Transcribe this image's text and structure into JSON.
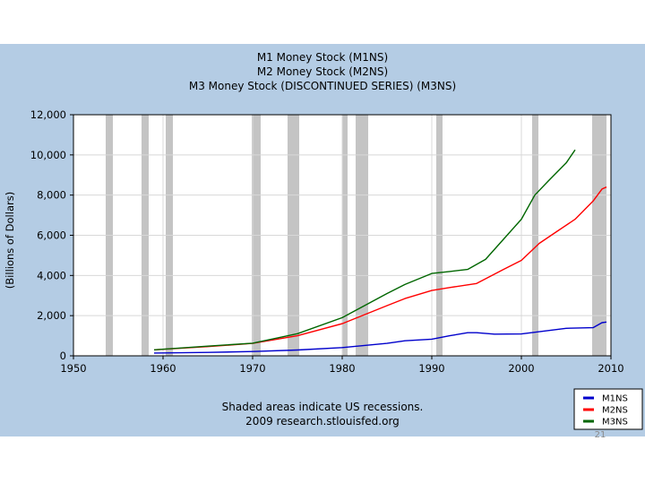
{
  "slide_number": "21",
  "chart_data": {
    "type": "line",
    "title_lines": [
      "M1 Money Stock (M1NS)",
      "M2 Money Stock (M2NS)",
      "M3 Money Stock (DISCONTINUED SERIES) (M3NS)"
    ],
    "ylabel": "(Billions of Dollars)",
    "xlabel": "",
    "xlim": [
      1950,
      2010
    ],
    "ylim": [
      0,
      12000
    ],
    "x_ticks": [
      1950,
      1960,
      1970,
      1980,
      1990,
      2000,
      2010
    ],
    "y_ticks": [
      0,
      2000,
      4000,
      6000,
      8000,
      10000,
      12000
    ],
    "x_tick_labels": [
      "1950",
      "1960",
      "1970",
      "1980",
      "1990",
      "2000",
      "2010"
    ],
    "y_tick_labels": [
      "0",
      "2,000",
      "4,000",
      "6,000",
      "8,000",
      "10,000",
      "12,000"
    ],
    "grid": true,
    "legend_position": "bottom-right",
    "recessions": [
      [
        1953.6,
        1954.4
      ],
      [
        1957.6,
        1958.4
      ],
      [
        1960.3,
        1961.1
      ],
      [
        1969.9,
        1970.9
      ],
      [
        1973.9,
        1975.2
      ],
      [
        1980.0,
        1980.6
      ],
      [
        1981.5,
        1982.9
      ],
      [
        1990.5,
        1991.2
      ],
      [
        2001.2,
        2001.9
      ],
      [
        2007.9,
        2009.5
      ]
    ],
    "series": [
      {
        "name": "M1NS",
        "color": "#0000cc",
        "x": [
          1959,
          1965,
          1970,
          1975,
          1980,
          1985,
          1987,
          1990,
          1992,
          1994,
          1995,
          1997,
          2000,
          2002,
          2005,
          2008,
          2009,
          2009.5
        ],
        "y": [
          140,
          170,
          215,
          290,
          410,
          620,
          750,
          830,
          1000,
          1150,
          1150,
          1080,
          1090,
          1200,
          1370,
          1400,
          1650,
          1680
        ]
      },
      {
        "name": "M2NS",
        "color": "#ff0000",
        "x": [
          1959,
          1965,
          1970,
          1975,
          1980,
          1985,
          1987,
          1990,
          1992,
          1995,
          1998,
          2000,
          2002,
          2004,
          2006,
          2008,
          2009,
          2009.5
        ],
        "y": [
          300,
          460,
          620,
          1000,
          1600,
          2500,
          2850,
          3250,
          3400,
          3600,
          4300,
          4750,
          5600,
          6200,
          6800,
          7700,
          8300,
          8400
        ]
      },
      {
        "name": "M3NS",
        "color": "#006600",
        "x": [
          1959,
          1965,
          1970,
          1975,
          1980,
          1985,
          1987,
          1990,
          1992,
          1994,
          1996,
          1998,
          2000,
          2001.5,
          2003,
          2005,
          2006
        ],
        "y": [
          300,
          480,
          630,
          1100,
          1900,
          3100,
          3550,
          4100,
          4200,
          4300,
          4800,
          5800,
          6800,
          8000,
          8700,
          9600,
          10250
        ]
      }
    ],
    "notes": [
      "Shaded areas indicate US recessions.",
      "2009 research.stlouisfed.org"
    ]
  }
}
